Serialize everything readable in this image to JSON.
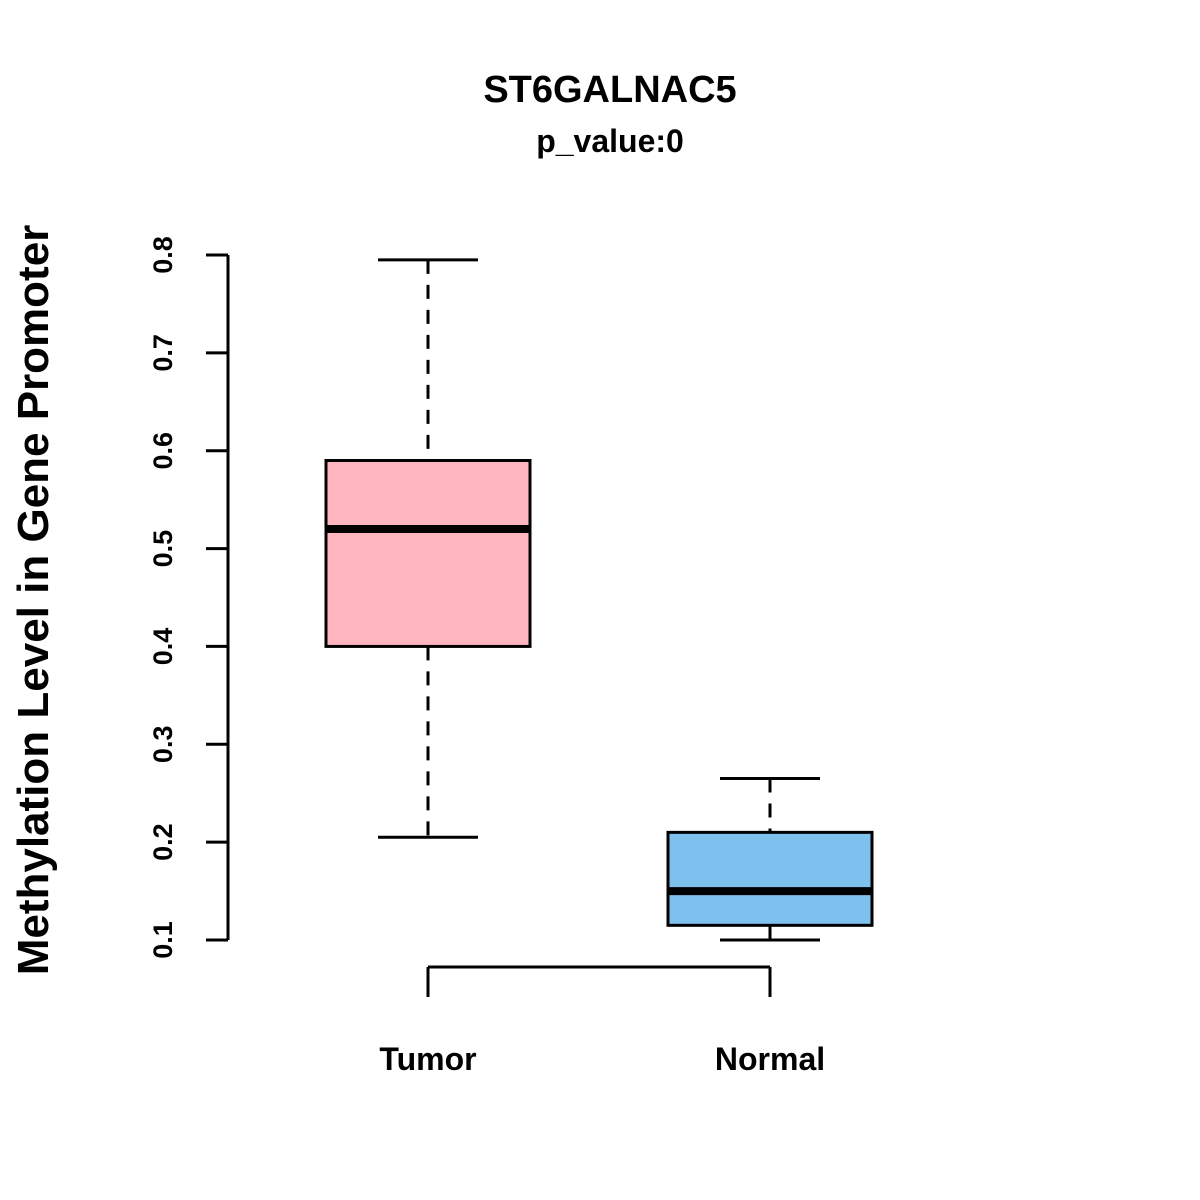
{
  "chart_data": {
    "type": "boxplot",
    "title": "ST6GALNAC5",
    "subtitle": "p_value:0",
    "ylabel": "Methylation Level in Gene Promoter",
    "xlabel": "",
    "ylim": [
      0.1,
      0.8
    ],
    "yticks": [
      0.1,
      0.2,
      0.3,
      0.4,
      0.5,
      0.6,
      0.7,
      0.8
    ],
    "categories": [
      "Tumor",
      "Normal"
    ],
    "series": [
      {
        "name": "Tumor",
        "color": "#FFB6C1",
        "whisker_low": 0.205,
        "q1": 0.4,
        "median": 0.52,
        "q3": 0.59,
        "whisker_high": 0.795
      },
      {
        "name": "Normal",
        "color": "#7EC0EE",
        "whisker_low": 0.1,
        "q1": 0.115,
        "median": 0.15,
        "q3": 0.21,
        "whisker_high": 0.265
      }
    ],
    "border_color": "#000000",
    "background": "#FFFFFF",
    "grid": false,
    "legend": "none"
  }
}
